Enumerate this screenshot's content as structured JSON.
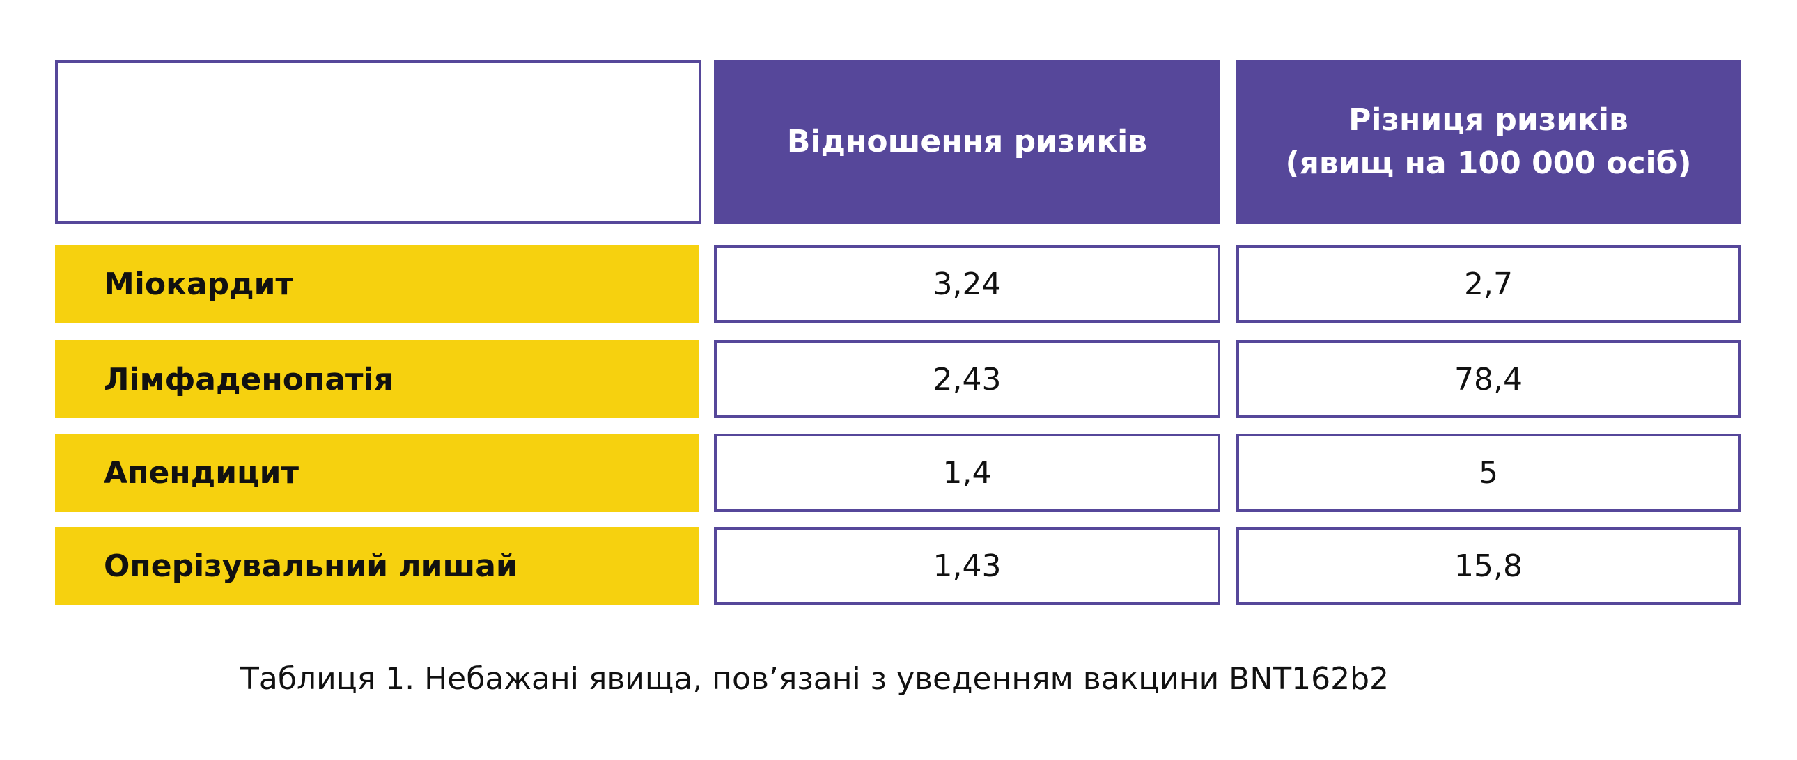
{
  "table": {
    "columns": [
      "Відношення ризиків",
      "Різниця ризиків\n(явищ на 100 000 осіб)"
    ],
    "rows": [
      [
        "Міокардит",
        "3,24",
        "2,7"
      ],
      [
        "Лімфаденопатія",
        "2,43",
        "78,4"
      ],
      [
        "Апендицит",
        "1,4",
        "5"
      ],
      [
        "Оперізувальний лишай",
        "1,43",
        "15,8"
      ]
    ]
  },
  "caption": "Таблиця 1. Небажані явища, пов’язані з уведенням вакцини BNT162b2"
}
